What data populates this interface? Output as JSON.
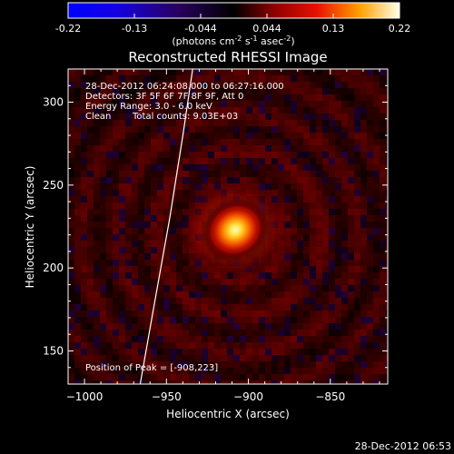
{
  "chart_data": {
    "type": "heatmap",
    "title": "Reconstructed RHESSI Image",
    "colorbar": {
      "ticks": [
        "-0.22",
        "-0.13",
        "-0.044",
        "0.044",
        "0.13",
        "0.22"
      ],
      "unit_main": "(photons cm",
      "unit_sup1": "-2",
      "unit_mid": " s",
      "unit_sup2": "-1",
      "unit_mid2": " asec",
      "unit_sup3": "-2",
      "unit_end": ")",
      "range": [
        -0.22,
        0.22
      ]
    },
    "info": {
      "time": "28-Dec-2012 06:24:08.000 to 06:27:16.000",
      "detectors": "Detectors: 3F 5F 6F 7F 8F 9F, Att 0",
      "energy": "Energy Range: 3.0 - 6.0 keV",
      "clean": "Clean",
      "counts": "Total counts: 9.03E+03"
    },
    "peak_label": "Position of Peak = [-908,223]",
    "peak": {
      "x": -908,
      "y": 223,
      "value": 0.22
    },
    "xlabel": "Heliocentric X (arcsec)",
    "ylabel": "Heliocentric Y (arcsec)",
    "xlim": [
      -1010,
      -815
    ],
    "ylim": [
      130,
      320
    ],
    "x_ticks": [
      {
        "value": -1000,
        "label": "−1000"
      },
      {
        "value": -950,
        "label": "−950"
      },
      {
        "value": -900,
        "label": "−900"
      },
      {
        "value": -850,
        "label": "−850"
      }
    ],
    "y_ticks": [
      {
        "value": 150,
        "label": "150"
      },
      {
        "value": 200,
        "label": "200"
      },
      {
        "value": 250,
        "label": "250"
      },
      {
        "value": 300,
        "label": "300"
      }
    ],
    "limb": {
      "x": [
        -966,
        -958,
        -948,
        -940,
        -934
      ],
      "y": [
        130,
        175,
        230,
        280,
        320
      ]
    },
    "source_fwhm_arcsec": 14
  },
  "footer": {
    "timestamp": "28-Dec-2012 06:53"
  }
}
